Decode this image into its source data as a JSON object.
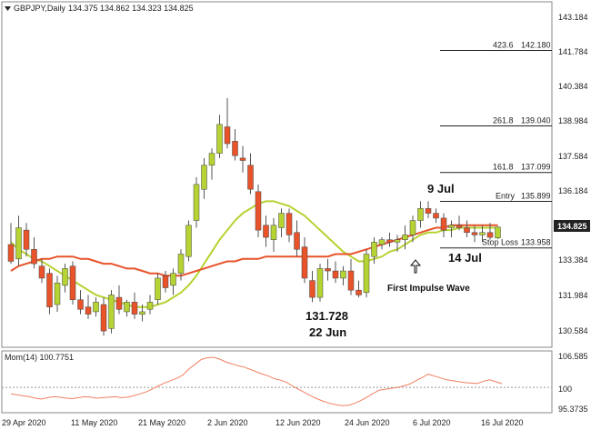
{
  "header": {
    "symbol": "GBPJPY,Daily",
    "ohlc": "134.375 134.862 134.323 134.825"
  },
  "momentum": {
    "label": "Mom(14) 100.7751",
    "ticks": [
      "106.585",
      "100",
      "95.3735"
    ],
    "values": [
      98.6,
      98.4,
      98.2,
      98.0,
      97.7,
      97.5,
      97.8,
      98.0,
      97.9,
      97.7,
      97.6,
      97.8,
      98.0,
      97.9,
      97.7,
      97.8,
      97.9,
      98.0,
      97.8,
      97.9,
      98.2,
      98.6,
      99.0,
      99.6,
      100.3,
      100.9,
      101.4,
      101.9,
      102.6,
      103.9,
      104.9,
      105.9,
      106.3,
      106.4,
      106.0,
      105.4,
      105.0,
      104.6,
      104.3,
      103.8,
      103.3,
      102.8,
      102.4,
      101.8,
      101.5,
      101.0,
      100.2,
      99.5,
      98.8,
      98.1,
      97.5,
      97.0,
      96.6,
      96.3,
      96.1,
      96.2,
      96.6,
      97.2,
      97.9,
      98.7,
      99.4,
      99.6,
      99.8,
      100.0,
      100.3,
      100.7,
      101.4,
      102.1,
      102.8,
      102.4,
      102.0,
      101.6,
      101.4,
      101.2,
      101.0,
      100.9,
      100.8,
      101.3,
      101.6,
      101.2,
      100.7751
    ],
    "colors": {
      "line": "#f08060",
      "baseline": "#999999"
    }
  },
  "chart_data": {
    "type": "candlestick",
    "title": "",
    "y_axis": {
      "min": 130.2,
      "max": 143.6,
      "ticks": [
        "143.184",
        "141.784",
        "140.384",
        "138.984",
        "137.584",
        "136.184",
        "134.784",
        "133.384",
        "131.984",
        "130.584"
      ],
      "current_price_label": "134.825"
    },
    "x_axis": {
      "labels": [
        "29 Apr 2020",
        "11 May 2020",
        "21 May 2020",
        "2 Jun 2020",
        "12 Jun 2020",
        "24 Jun 2020",
        "6 Jul 2020",
        "16 Jul 2020"
      ],
      "label_bar_index": [
        0,
        9,
        19,
        28,
        37,
        46,
        55,
        64
      ]
    },
    "candles": [
      [
        134.1,
        135.0,
        133.3,
        133.4
      ],
      [
        133.5,
        135.3,
        133.2,
        134.8
      ],
      [
        134.7,
        135.0,
        133.6,
        133.9
      ],
      [
        133.9,
        134.4,
        133.1,
        133.3
      ],
      [
        133.2,
        133.5,
        132.5,
        132.7
      ],
      [
        132.9,
        133.1,
        131.2,
        131.5
      ],
      [
        131.6,
        132.8,
        131.3,
        132.5
      ],
      [
        132.4,
        133.3,
        132.1,
        133.1
      ],
      [
        133.2,
        133.4,
        131.6,
        131.8
      ],
      [
        131.8,
        132.2,
        131.2,
        131.4
      ],
      [
        131.5,
        132.0,
        131.0,
        131.2
      ],
      [
        131.3,
        131.9,
        131.1,
        131.7
      ],
      [
        131.6,
        131.9,
        130.3,
        130.5
      ],
      [
        130.6,
        132.2,
        130.4,
        132.0
      ],
      [
        131.9,
        132.4,
        131.2,
        131.4
      ],
      [
        131.3,
        131.8,
        131.1,
        131.7
      ],
      [
        131.7,
        132.1,
        131.0,
        131.2
      ],
      [
        131.2,
        131.6,
        130.9,
        131.3
      ],
      [
        131.4,
        132.0,
        131.2,
        131.7
      ],
      [
        131.8,
        132.9,
        131.6,
        132.7
      ],
      [
        132.8,
        133.0,
        132.1,
        132.3
      ],
      [
        132.4,
        133.1,
        132.0,
        132.9
      ],
      [
        132.9,
        133.9,
        132.6,
        133.7
      ],
      [
        133.6,
        135.1,
        133.4,
        134.9
      ],
      [
        135.1,
        136.9,
        134.8,
        136.6
      ],
      [
        136.4,
        137.7,
        136.0,
        137.4
      ],
      [
        137.4,
        138.1,
        136.8,
        137.9
      ],
      [
        137.9,
        139.5,
        137.7,
        139.1
      ],
      [
        139.0,
        140.2,
        138.1,
        138.3
      ],
      [
        138.4,
        138.9,
        137.6,
        137.8
      ],
      [
        137.7,
        138.2,
        137.1,
        137.6
      ],
      [
        137.4,
        137.9,
        136.2,
        136.4
      ],
      [
        136.3,
        136.6,
        134.4,
        134.7
      ],
      [
        134.9,
        135.3,
        134.0,
        134.4
      ],
      [
        134.3,
        135.2,
        133.8,
        134.9
      ],
      [
        134.8,
        135.6,
        134.4,
        135.4
      ],
      [
        135.4,
        135.6,
        134.2,
        134.5
      ],
      [
        134.6,
        135.1,
        133.6,
        133.9
      ],
      [
        134.0,
        134.4,
        132.5,
        132.7
      ],
      [
        132.6,
        133.0,
        131.7,
        131.9
      ],
      [
        131.9,
        133.3,
        131.728,
        133.1
      ],
      [
        133.1,
        133.5,
        132.6,
        133.0
      ],
      [
        133.0,
        133.4,
        132.5,
        132.7
      ],
      [
        132.7,
        133.2,
        132.4,
        133.0
      ],
      [
        133.0,
        133.5,
        132.0,
        132.2
      ],
      [
        132.2,
        132.6,
        131.9,
        132.0
      ],
      [
        132.1,
        133.9,
        131.9,
        133.7
      ],
      [
        133.6,
        134.4,
        133.3,
        134.2
      ],
      [
        134.1,
        134.4,
        133.9,
        134.3
      ],
      [
        134.3,
        134.6,
        134.0,
        134.2
      ],
      [
        134.2,
        134.5,
        133.8,
        134.3
      ],
      [
        134.3,
        134.9,
        133.9,
        134.5
      ],
      [
        134.5,
        135.3,
        134.2,
        135.1
      ],
      [
        135.1,
        135.9,
        134.8,
        135.6
      ],
      [
        135.6,
        135.9,
        135.2,
        135.4
      ],
      [
        135.4,
        135.6,
        135.0,
        135.2
      ],
      [
        135.2,
        135.4,
        134.4,
        134.7
      ],
      [
        134.8,
        135.1,
        134.4,
        134.9
      ],
      [
        134.9,
        135.3,
        134.7,
        134.8
      ],
      [
        134.8,
        135.1,
        134.4,
        134.6
      ],
      [
        134.6,
        134.9,
        134.2,
        134.5
      ],
      [
        134.5,
        134.9,
        134.2,
        134.6
      ],
      [
        134.6,
        135.0,
        134.3,
        134.4
      ],
      [
        134.375,
        134.862,
        134.323,
        134.825
      ]
    ],
    "colors": {
      "bull": "#b5d332",
      "bear": "#e8532a",
      "wick": "#555555"
    },
    "moving_averages": [
      {
        "color": "#b5d332",
        "values": [
          134.2,
          133.9,
          133.7,
          133.5,
          133.4,
          133.2,
          133.0,
          132.8,
          132.6,
          132.4,
          132.2,
          132.0,
          131.9,
          131.8,
          131.7,
          131.6,
          131.5,
          131.5,
          131.5,
          131.6,
          131.7,
          131.9,
          132.1,
          132.4,
          132.8,
          133.3,
          133.8,
          134.3,
          134.7,
          135.1,
          135.4,
          135.6,
          135.8,
          135.9,
          135.9,
          135.8,
          135.7,
          135.5,
          135.3,
          135.0,
          134.7,
          134.4,
          134.1,
          133.8,
          133.6,
          133.4,
          133.4,
          133.5,
          133.6,
          133.8,
          133.9,
          134.1,
          134.3,
          134.5,
          134.6,
          134.6,
          134.7,
          134.7,
          134.8,
          134.8,
          134.8,
          134.8,
          134.8,
          134.8
        ]
      },
      {
        "color": "#e8532a",
        "values": [
          133.0,
          133.2,
          133.3,
          133.4,
          133.5,
          133.5,
          133.6,
          133.6,
          133.6,
          133.5,
          133.5,
          133.4,
          133.3,
          133.3,
          133.2,
          133.1,
          133.1,
          133.0,
          132.9,
          132.9,
          132.8,
          132.8,
          132.8,
          132.9,
          133.0,
          133.1,
          133.2,
          133.3,
          133.4,
          133.4,
          133.5,
          133.5,
          133.5,
          133.6,
          133.6,
          133.6,
          133.6,
          133.6,
          133.6,
          133.6,
          133.6,
          133.6,
          133.7,
          133.7,
          133.7,
          133.8,
          133.9,
          134.0,
          134.1,
          134.2,
          134.3,
          134.4,
          134.5,
          134.6,
          134.7,
          134.8,
          134.8,
          134.9,
          134.9,
          134.9,
          134.9,
          134.9,
          134.9,
          134.9
        ]
      }
    ],
    "fib_levels": [
      {
        "ratio": "423.6",
        "price": "142.180",
        "value": 142.18
      },
      {
        "ratio": "261.8",
        "price": "139.040",
        "value": 139.04
      },
      {
        "ratio": "161.8",
        "price": "137.099",
        "value": 137.099
      },
      {
        "label": "Entry",
        "price": "135.899",
        "value": 135.899
      },
      {
        "label": "Stop Loss",
        "price": "133.958",
        "value": 133.958
      }
    ],
    "annotations": {
      "low_price": "131.728",
      "low_date": "22 Jun",
      "date_9jul": "9 Jul",
      "date_14jul": "14 Jul",
      "impulse": "First Impulse Wave"
    }
  }
}
